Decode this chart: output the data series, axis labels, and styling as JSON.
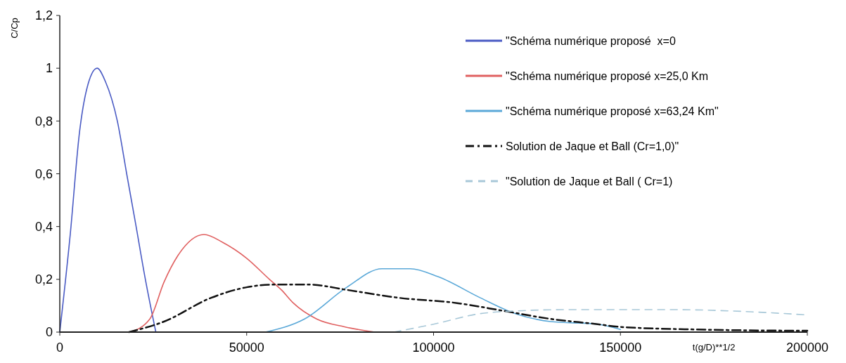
{
  "chart_data": {
    "type": "line",
    "xlabel": "t(g/D)**1/2",
    "ylabel": "C/Cp",
    "xlim": [
      0,
      200000
    ],
    "ylim": [
      0,
      1.2
    ],
    "xticks": [
      0,
      50000,
      100000,
      150000,
      200000
    ],
    "yticks": [
      0,
      {
        "value": 0.2,
        "label": "0,2"
      },
      {
        "value": 0.4,
        "label": "0,4"
      },
      {
        "value": 0.6,
        "label": "0,6"
      },
      {
        "value": 0.8,
        "label": "0,8"
      },
      1,
      {
        "value": 1.2,
        "label": "1,2"
      }
    ],
    "grid": false,
    "legend": "top right",
    "marker": "none",
    "series": [
      {
        "name": "\"Schéma numérique proposé  x=0",
        "color": "#4a5bc4",
        "line_style": "solid",
        "x": [
          0,
          2800,
          5300,
          7200,
          10000,
          12200,
          15400,
          17900,
          20300,
          22900,
          25700
        ],
        "values": [
          0,
          0.37,
          0.76,
          0.92,
          1.0,
          0.95,
          0.8,
          0.6,
          0.41,
          0.2,
          0
        ]
      },
      {
        "name": "\"Schéma numérique proposé x=25,0 Km",
        "color": "#e06060",
        "line_style": "solid",
        "x": [
          18800,
          24100,
          27900,
          31600,
          38600,
          43600,
          50000,
          56100,
          59300,
          62500,
          68700,
          76200,
          84300
        ],
        "values": [
          0,
          0.05,
          0.19,
          0.29,
          0.37,
          0.34,
          0.28,
          0.2,
          0.16,
          0.11,
          0.05,
          0.02,
          0
        ]
      },
      {
        "name": "\"Schéma numérique proposé x=63,24 Km\"",
        "color": "#5aa8d8",
        "line_style": "solid",
        "x": [
          55000,
          65500,
          76800,
          86200,
          93700,
          101200,
          112500,
          121900,
          131300,
          143900,
          150000
        ],
        "values": [
          0,
          0.05,
          0.17,
          0.24,
          0.24,
          0.21,
          0.13,
          0.07,
          0.04,
          0.03,
          0.01
        ]
      },
      {
        "name": "Solution de Jaque et Ball (Cr=1,0)\"",
        "color": "#111111",
        "line_style": "dashdot",
        "x": [
          18500,
          27900,
          40500,
          50000,
          57400,
          66800,
          76800,
          90700,
          106300,
          118900,
          131300,
          143900,
          149600,
          170000,
          200000
        ],
        "values": [
          0,
          0.04,
          0.13,
          0.17,
          0.18,
          0.18,
          0.16,
          0.13,
          0.11,
          0.08,
          0.05,
          0.03,
          0.02,
          0.01,
          0.005
        ]
      },
      {
        "name": "\"Solution de Jaque et Ball ( Cr=1)",
        "color": "#a8c8d8",
        "line_style": "dashed",
        "x": [
          89400,
          100000,
          112500,
          121900,
          135000,
          150000,
          165000,
          180000,
          200000
        ],
        "values": [
          0,
          0.03,
          0.07,
          0.08,
          0.085,
          0.085,
          0.085,
          0.08,
          0.065
        ]
      }
    ]
  }
}
